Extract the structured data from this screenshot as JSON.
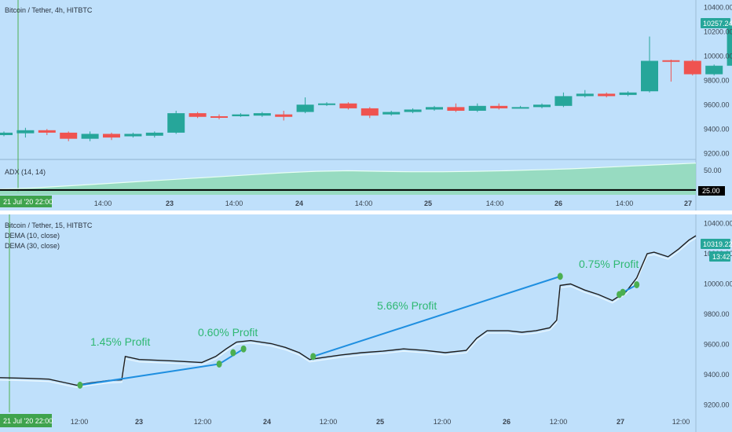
{
  "top_panel": {
    "title": "Bitcoin / Tether, 4h, HITBTC",
    "price_badge": "10257.24",
    "colors": {
      "up": "#26a69a",
      "down": "#ef5350",
      "badge": "#26a69a"
    }
  },
  "adx_panel": {
    "title": "ADX (14, 14)",
    "level_badge": "25.00",
    "ticks": [
      "50.00"
    ]
  },
  "time_axis_top": {
    "date_badge": "21 Jul '20  22:00",
    "ticks": [
      "14:00",
      "23",
      "14:00",
      "24",
      "14:00",
      "25",
      "14:00",
      "26",
      "14:00",
      "27"
    ]
  },
  "bottom_panel": {
    "title": "Bitcoin / Tether, 15, HITBTC",
    "studies": [
      "DEMA (10, close)",
      "DEMA (30, close)"
    ],
    "price_badge": "10319.22",
    "time_badge": "13:42",
    "profit_labels": [
      "1.45% Profit",
      "0.60% Profit",
      "5.66% Profit",
      "0.75% Profit"
    ],
    "colors": {
      "profit_text": "#2eb872",
      "trade_line": "#1f8fe0",
      "marker": "#4caf50"
    }
  },
  "time_axis_bottom": {
    "date_badge": "21 Jul '20  22:00",
    "ticks": [
      "12:00",
      "23",
      "12:00",
      "24",
      "12:00",
      "25",
      "12:00",
      "26",
      "12:00",
      "27",
      "12:00"
    ]
  },
  "chart_data": [
    {
      "type": "candlestick",
      "title": "Bitcoin / Tether, 4h, HITBTC",
      "yticks": [
        9200,
        9400,
        9600,
        9800,
        10000,
        10200,
        10400
      ],
      "ylim": [
        9150,
        10460
      ],
      "last_price": 10257.24,
      "candles": [
        {
          "o": 9350,
          "c": 9370,
          "h": 9380,
          "l": 9340
        },
        {
          "o": 9365,
          "c": 9390,
          "h": 9410,
          "l": 9330
        },
        {
          "o": 9390,
          "c": 9370,
          "h": 9400,
          "l": 9350
        },
        {
          "o": 9370,
          "c": 9320,
          "h": 9380,
          "l": 9300
        },
        {
          "o": 9320,
          "c": 9360,
          "h": 9380,
          "l": 9300
        },
        {
          "o": 9360,
          "c": 9330,
          "h": 9370,
          "l": 9310
        },
        {
          "o": 9340,
          "c": 9360,
          "h": 9370,
          "l": 9330
        },
        {
          "o": 9345,
          "c": 9370,
          "h": 9380,
          "l": 9330
        },
        {
          "o": 9370,
          "c": 9530,
          "h": 9550,
          "l": 9360
        },
        {
          "o": 9530,
          "c": 9500,
          "h": 9540,
          "l": 9490
        },
        {
          "o": 9505,
          "c": 9495,
          "h": 9520,
          "l": 9480
        },
        {
          "o": 9505,
          "c": 9520,
          "h": 9530,
          "l": 9500
        },
        {
          "o": 9510,
          "c": 9530,
          "h": 9540,
          "l": 9500
        },
        {
          "o": 9520,
          "c": 9500,
          "h": 9550,
          "l": 9470
        },
        {
          "o": 9540,
          "c": 9600,
          "h": 9660,
          "l": 9530
        },
        {
          "o": 9600,
          "c": 9610,
          "h": 9620,
          "l": 9590
        },
        {
          "o": 9610,
          "c": 9570,
          "h": 9620,
          "l": 9560
        },
        {
          "o": 9570,
          "c": 9510,
          "h": 9580,
          "l": 9490
        },
        {
          "o": 9520,
          "c": 9540,
          "h": 9550,
          "l": 9510
        },
        {
          "o": 9540,
          "c": 9560,
          "h": 9570,
          "l": 9530
        },
        {
          "o": 9560,
          "c": 9580,
          "h": 9590,
          "l": 9550
        },
        {
          "o": 9580,
          "c": 9550,
          "h": 9610,
          "l": 9540
        },
        {
          "o": 9550,
          "c": 9590,
          "h": 9610,
          "l": 9540
        },
        {
          "o": 9590,
          "c": 9570,
          "h": 9610,
          "l": 9560
        },
        {
          "o": 9575,
          "c": 9580,
          "h": 9590,
          "l": 9570
        },
        {
          "o": 9580,
          "c": 9600,
          "h": 9610,
          "l": 9570
        },
        {
          "o": 9590,
          "c": 9670,
          "h": 9700,
          "l": 9580
        },
        {
          "o": 9670,
          "c": 9690,
          "h": 9720,
          "l": 9660
        },
        {
          "o": 9690,
          "c": 9670,
          "h": 9700,
          "l": 9660
        },
        {
          "o": 9680,
          "c": 9700,
          "h": 9710,
          "l": 9670
        },
        {
          "o": 9710,
          "c": 9960,
          "h": 10160,
          "l": 9700
        },
        {
          "o": 9965,
          "c": 9955,
          "h": 9970,
          "l": 9790
        },
        {
          "o": 9960,
          "c": 9850,
          "h": 9970,
          "l": 9840
        },
        {
          "o": 9850,
          "c": 9920,
          "h": 9930,
          "l": 9840
        },
        {
          "o": 9920,
          "c": 10257.24,
          "h": 10320,
          "l": 9910
        }
      ]
    },
    {
      "type": "area",
      "title": "ADX (14, 14)",
      "level": 25,
      "yticks": [
        50
      ],
      "ylim": [
        20,
        56
      ],
      "values": [
        26,
        27,
        29,
        31,
        33,
        35,
        37,
        39,
        41,
        43,
        44.5,
        45,
        44.5,
        44,
        44,
        44.5,
        45,
        46,
        47,
        48.5,
        50,
        51.5,
        53
      ]
    },
    {
      "type": "line",
      "title": "Bitcoin / Tether, 15, HITBTC",
      "yticks": [
        9200,
        9400,
        9600,
        9800,
        10000,
        10200,
        10400
      ],
      "ylim": [
        9150,
        10460
      ],
      "last_price": 10319.22,
      "x_range": [
        0,
        100
      ],
      "price": [
        [
          0,
          9380
        ],
        [
          4,
          9375
        ],
        [
          7,
          9370
        ],
        [
          9.5,
          9345
        ],
        [
          11,
          9330
        ],
        [
          13,
          9345
        ],
        [
          15.5,
          9360
        ],
        [
          17.5,
          9365
        ],
        [
          18,
          9520
        ],
        [
          20,
          9500
        ],
        [
          25,
          9490
        ],
        [
          29,
          9480
        ],
        [
          31,
          9520
        ],
        [
          32.5,
          9570
        ],
        [
          34,
          9615
        ],
        [
          36,
          9625
        ],
        [
          39,
          9605
        ],
        [
          41,
          9580
        ],
        [
          43,
          9545
        ],
        [
          44.5,
          9500
        ],
        [
          46,
          9510
        ],
        [
          49,
          9530
        ],
        [
          52,
          9545
        ],
        [
          55,
          9555
        ],
        [
          58,
          9570
        ],
        [
          61,
          9560
        ],
        [
          64,
          9545
        ],
        [
          67,
          9560
        ],
        [
          68.5,
          9640
        ],
        [
          70,
          9690
        ],
        [
          73,
          9690
        ],
        [
          75,
          9680
        ],
        [
          77,
          9690
        ],
        [
          79,
          9710
        ],
        [
          80,
          9760
        ],
        [
          80.5,
          9990
        ],
        [
          82,
          10000
        ],
        [
          84,
          9960
        ],
        [
          86,
          9930
        ],
        [
          88,
          9890
        ],
        [
          90,
          9950
        ],
        [
          91.5,
          10040
        ],
        [
          93,
          10200
        ],
        [
          94,
          10210
        ],
        [
          96,
          10180
        ],
        [
          97.5,
          10230
        ],
        [
          99,
          10290
        ],
        [
          100,
          10319
        ]
      ],
      "trade_lines": [
        [
          [
            11.5,
            9330
          ],
          [
            31.5,
            9470
          ]
        ],
        [
          [
            31.5,
            9470
          ],
          [
            35,
            9570
          ]
        ],
        [
          [
            45,
            9520
          ],
          [
            80.5,
            10050
          ]
        ],
        [
          [
            89,
            9930
          ],
          [
            91.5,
            9995
          ]
        ]
      ],
      "markers": [
        [
          11.5,
          9330
        ],
        [
          31.5,
          9470
        ],
        [
          33.5,
          9545
        ],
        [
          35,
          9570
        ],
        [
          45,
          9520
        ],
        [
          80.5,
          10050
        ],
        [
          89,
          9930
        ],
        [
          89.5,
          9945
        ],
        [
          91.5,
          9995
        ]
      ]
    }
  ]
}
